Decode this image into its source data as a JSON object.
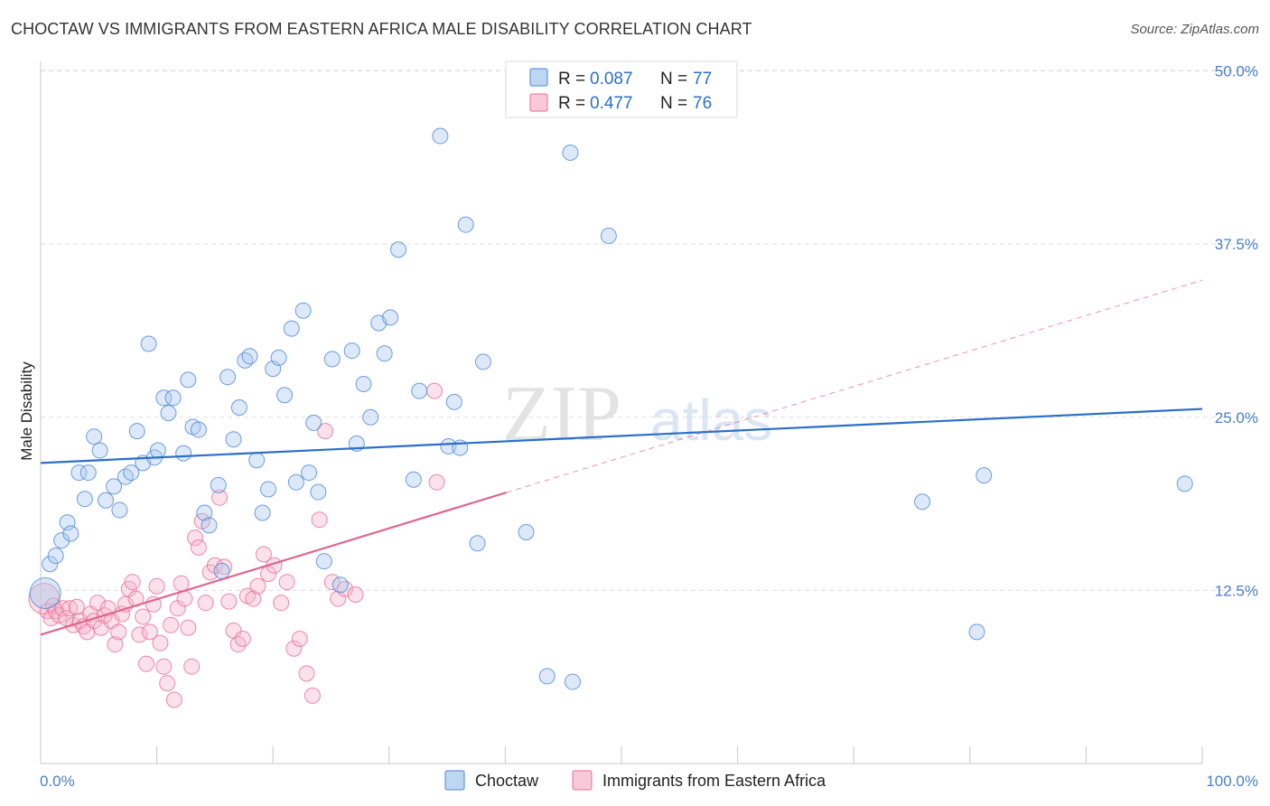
{
  "title": "CHOCTAW VS IMMIGRANTS FROM EASTERN AFRICA MALE DISABILITY CORRELATION CHART",
  "source": "Source: ZipAtlas.com",
  "watermark": {
    "zip": "ZIP",
    "atlas": "atlas"
  },
  "colors": {
    "blue": "#4a86d8",
    "blue_fill": "#aac8ee",
    "blue_line": "#2a6fc9",
    "pink": "#e86b97",
    "pink_fill": "#f5b7cb",
    "pink_line": "#e0658f",
    "tick_text": "#4a7fc9",
    "grid": "#dddddd"
  },
  "legend": {
    "rows": [
      {
        "r_label": "R =",
        "r_value": "0.087",
        "n_label": "N =",
        "n_value": "77"
      },
      {
        "r_label": "R =",
        "r_value": "0.477",
        "n_label": "N =",
        "n_value": "76"
      }
    ]
  },
  "chart_data": {
    "type": "scatter",
    "title": "CHOCTAW VS IMMIGRANTS FROM EASTERN AFRICA MALE DISABILITY CORRELATION CHART",
    "xlabel": "",
    "ylabel": "Male Disability",
    "xlim": [
      0,
      100
    ],
    "ylim": [
      0,
      50
    ],
    "x_tick_labels": [
      "0.0%",
      "100.0%"
    ],
    "y_ticks": [
      12.5,
      25.0,
      37.5,
      50.0
    ],
    "y_tick_labels": [
      "12.5%",
      "25.0%",
      "37.5%",
      "50.0%"
    ],
    "legend_position": "top-center",
    "series": [
      {
        "name": "Choctaw",
        "color": "#4a86d8",
        "r": 0.087,
        "n": 77,
        "trend": {
          "x0": 0,
          "y0": 21.7,
          "x1": 100,
          "y1": 25.6,
          "solid_until": 100
        },
        "points": [
          [
            0.4,
            12.3,
            1
          ],
          [
            0.8,
            14.4,
            0
          ],
          [
            1.3,
            15.0,
            0
          ],
          [
            1.8,
            16.1,
            0
          ],
          [
            2.3,
            17.4,
            0
          ],
          [
            2.6,
            16.6,
            0
          ],
          [
            3.3,
            21.0,
            0
          ],
          [
            3.8,
            19.1,
            0
          ],
          [
            4.1,
            21.0,
            0
          ],
          [
            4.6,
            23.6,
            0
          ],
          [
            5.1,
            22.6,
            0
          ],
          [
            5.6,
            19.0,
            0
          ],
          [
            6.3,
            20.0,
            0
          ],
          [
            6.8,
            18.3,
            0
          ],
          [
            7.3,
            20.7,
            0
          ],
          [
            7.8,
            21.0,
            0
          ],
          [
            8.3,
            24.0,
            0
          ],
          [
            8.8,
            21.7,
            0
          ],
          [
            9.3,
            30.3,
            0
          ],
          [
            9.8,
            22.1,
            0
          ],
          [
            10.1,
            22.6,
            0
          ],
          [
            10.6,
            26.4,
            0
          ],
          [
            11.0,
            25.3,
            0
          ],
          [
            11.4,
            26.4,
            0
          ],
          [
            12.3,
            22.4,
            0
          ],
          [
            12.7,
            27.7,
            0
          ],
          [
            13.1,
            24.3,
            0
          ],
          [
            13.6,
            24.1,
            0
          ],
          [
            14.1,
            18.1,
            0
          ],
          [
            14.5,
            17.2,
            0
          ],
          [
            15.3,
            20.1,
            0
          ],
          [
            15.6,
            13.9,
            0
          ],
          [
            16.1,
            27.9,
            0
          ],
          [
            16.6,
            23.4,
            0
          ],
          [
            17.1,
            25.7,
            0
          ],
          [
            17.6,
            29.1,
            0
          ],
          [
            18.0,
            29.4,
            0
          ],
          [
            18.6,
            21.9,
            0
          ],
          [
            19.1,
            18.1,
            0
          ],
          [
            19.6,
            19.8,
            0
          ],
          [
            20.0,
            28.5,
            0
          ],
          [
            20.5,
            29.3,
            0
          ],
          [
            21.0,
            26.6,
            0
          ],
          [
            21.6,
            31.4,
            0
          ],
          [
            22.0,
            20.3,
            0
          ],
          [
            22.6,
            32.7,
            0
          ],
          [
            23.1,
            21.0,
            0
          ],
          [
            23.5,
            24.6,
            0
          ],
          [
            23.9,
            19.6,
            0
          ],
          [
            24.4,
            14.6,
            0
          ],
          [
            25.1,
            29.2,
            0
          ],
          [
            25.8,
            12.9,
            0
          ],
          [
            26.8,
            29.8,
            0
          ],
          [
            27.2,
            23.1,
            0
          ],
          [
            27.8,
            27.4,
            0
          ],
          [
            28.4,
            25.0,
            0
          ],
          [
            29.1,
            31.8,
            0
          ],
          [
            29.6,
            29.6,
            0
          ],
          [
            30.1,
            32.2,
            0
          ],
          [
            30.8,
            37.1,
            0
          ],
          [
            32.1,
            20.5,
            0
          ],
          [
            32.6,
            26.9,
            0
          ],
          [
            34.4,
            45.3,
            0
          ],
          [
            35.1,
            22.9,
            0
          ],
          [
            35.6,
            26.1,
            0
          ],
          [
            36.1,
            22.8,
            0
          ],
          [
            36.6,
            38.9,
            0
          ],
          [
            37.6,
            15.9,
            0
          ],
          [
            38.1,
            29.0,
            0
          ],
          [
            41.8,
            16.7,
            0
          ],
          [
            43.6,
            6.3,
            0
          ],
          [
            45.6,
            44.1,
            0
          ],
          [
            45.8,
            5.9,
            0
          ],
          [
            48.9,
            38.1,
            0
          ],
          [
            75.9,
            18.9,
            0
          ],
          [
            80.6,
            9.5,
            0
          ],
          [
            81.2,
            20.8,
            0
          ],
          [
            98.5,
            20.2,
            0
          ]
        ]
      },
      {
        "name": "Immigrants from Eastern Africa",
        "color": "#e86b97",
        "r": 0.477,
        "n": 76,
        "trend": {
          "x0": 0,
          "y0": 9.3,
          "x1": 100,
          "y1": 34.9,
          "solid_until": 40.1
        },
        "points": [
          [
            0.3,
            11.9,
            1
          ],
          [
            0.6,
            11.0,
            0
          ],
          [
            0.9,
            10.5,
            0
          ],
          [
            1.1,
            11.4,
            0
          ],
          [
            1.3,
            11.0,
            0
          ],
          [
            1.6,
            10.7,
            0
          ],
          [
            1.9,
            11.2,
            0
          ],
          [
            2.2,
            10.5,
            0
          ],
          [
            2.5,
            11.2,
            0
          ],
          [
            2.8,
            10.0,
            0
          ],
          [
            3.1,
            11.3,
            0
          ],
          [
            3.4,
            10.3,
            0
          ],
          [
            3.7,
            9.9,
            0
          ],
          [
            4.0,
            9.5,
            0
          ],
          [
            4.3,
            10.8,
            0
          ],
          [
            4.6,
            10.3,
            0
          ],
          [
            4.9,
            11.6,
            0
          ],
          [
            5.2,
            9.8,
            0
          ],
          [
            5.5,
            10.7,
            0
          ],
          [
            5.8,
            11.2,
            0
          ],
          [
            6.1,
            10.3,
            0
          ],
          [
            6.4,
            8.6,
            0
          ],
          [
            6.7,
            9.5,
            0
          ],
          [
            7.0,
            10.8,
            0
          ],
          [
            7.3,
            11.5,
            0
          ],
          [
            7.6,
            12.6,
            0
          ],
          [
            7.9,
            13.1,
            0
          ],
          [
            8.2,
            11.9,
            0
          ],
          [
            8.5,
            9.3,
            0
          ],
          [
            8.8,
            10.6,
            0
          ],
          [
            9.1,
            7.2,
            0
          ],
          [
            9.4,
            9.5,
            0
          ],
          [
            9.7,
            11.5,
            0
          ],
          [
            10.0,
            12.8,
            0
          ],
          [
            10.3,
            8.7,
            0
          ],
          [
            10.6,
            7.0,
            0
          ],
          [
            10.9,
            5.8,
            0
          ],
          [
            11.2,
            10.0,
            0
          ],
          [
            11.5,
            4.6,
            0
          ],
          [
            11.8,
            11.2,
            0
          ],
          [
            12.1,
            13.0,
            0
          ],
          [
            12.4,
            11.9,
            0
          ],
          [
            12.7,
            9.8,
            0
          ],
          [
            13.0,
            7.0,
            0
          ],
          [
            13.3,
            16.3,
            0
          ],
          [
            13.6,
            15.6,
            0
          ],
          [
            13.9,
            17.5,
            0
          ],
          [
            14.2,
            11.6,
            0
          ],
          [
            14.6,
            13.8,
            0
          ],
          [
            15.0,
            14.3,
            0
          ],
          [
            15.4,
            19.2,
            0
          ],
          [
            15.8,
            14.2,
            0
          ],
          [
            16.2,
            11.7,
            0
          ],
          [
            16.6,
            9.6,
            0
          ],
          [
            17.0,
            8.6,
            0
          ],
          [
            17.4,
            9.0,
            0
          ],
          [
            17.8,
            12.1,
            0
          ],
          [
            18.3,
            11.9,
            0
          ],
          [
            18.7,
            12.8,
            0
          ],
          [
            19.2,
            15.1,
            0
          ],
          [
            19.6,
            13.7,
            0
          ],
          [
            20.1,
            14.3,
            0
          ],
          [
            20.7,
            11.6,
            0
          ],
          [
            21.2,
            13.1,
            0
          ],
          [
            21.8,
            8.3,
            0
          ],
          [
            22.3,
            9.0,
            0
          ],
          [
            22.9,
            6.5,
            0
          ],
          [
            23.4,
            4.9,
            0
          ],
          [
            24.0,
            17.6,
            0
          ],
          [
            24.5,
            24.0,
            0
          ],
          [
            25.1,
            13.1,
            0
          ],
          [
            25.6,
            11.9,
            0
          ],
          [
            26.2,
            12.6,
            0
          ],
          [
            27.1,
            12.2,
            0
          ],
          [
            33.9,
            26.9,
            0
          ],
          [
            34.1,
            20.3,
            0
          ]
        ]
      }
    ]
  },
  "bottom_legend": {
    "items": [
      "Choctaw",
      "Immigrants from Eastern Africa"
    ]
  }
}
